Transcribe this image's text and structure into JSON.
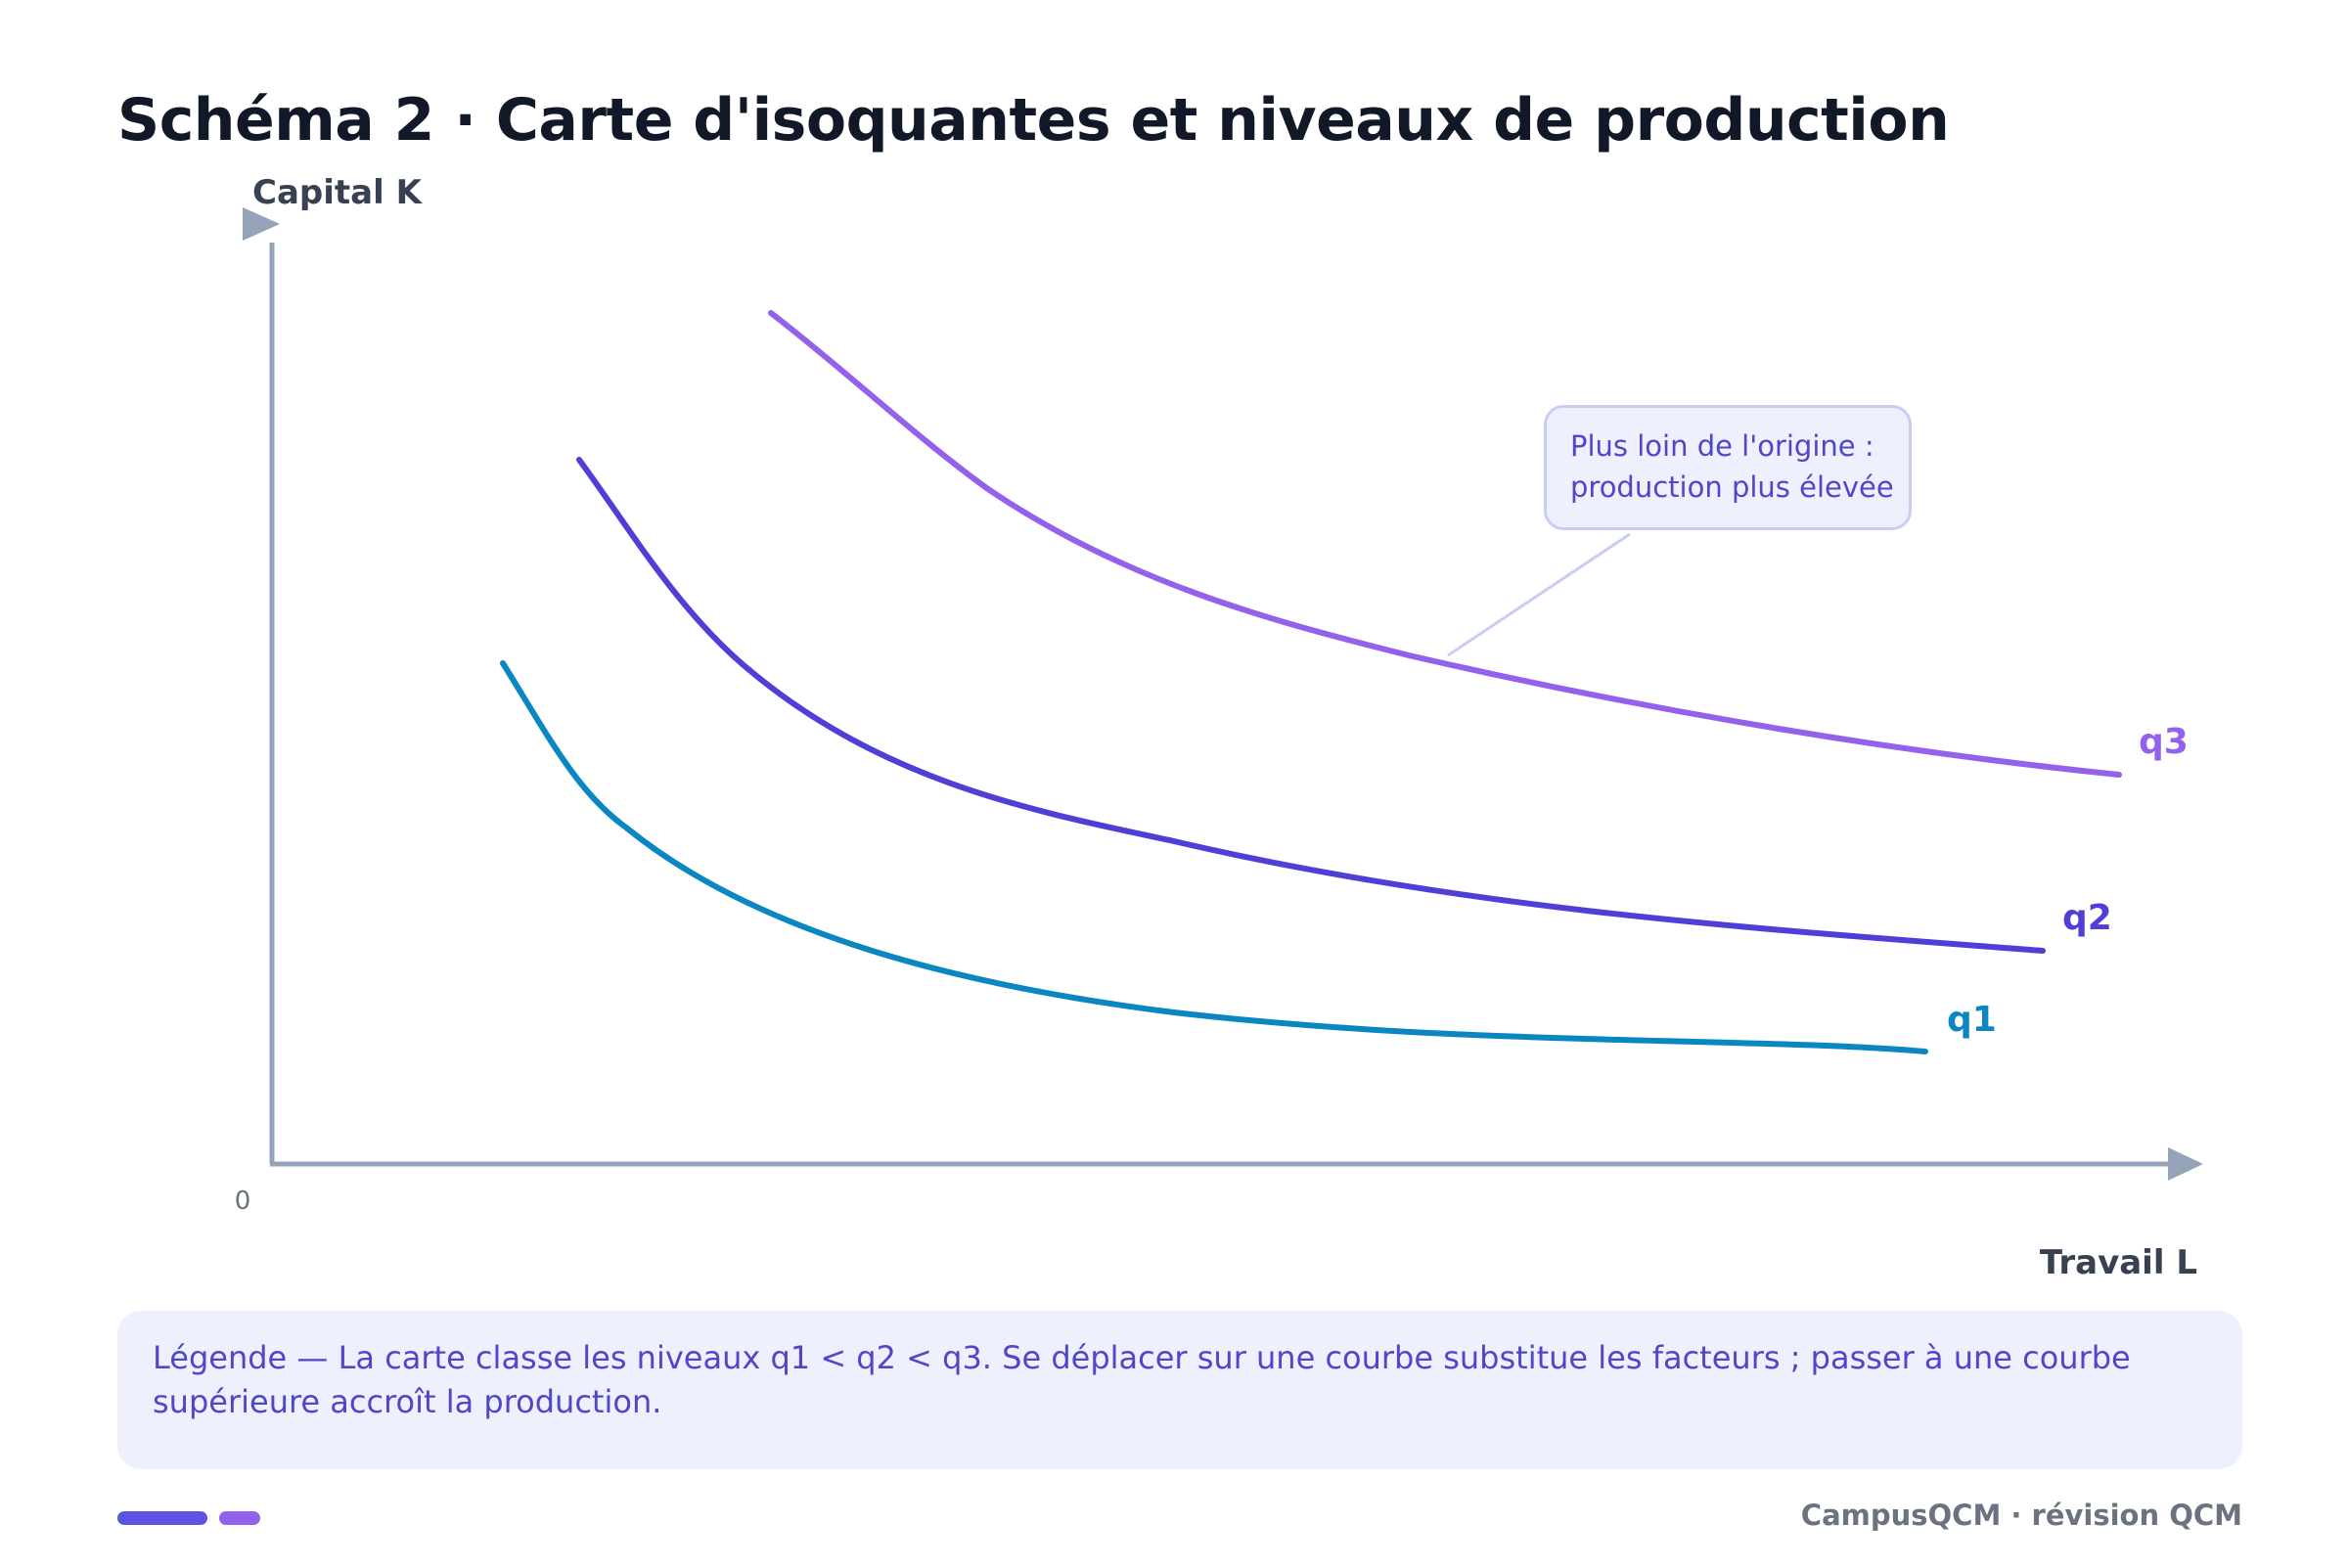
{
  "title": "Schéma 2 · Carte d'isoquantes et niveaux de production",
  "axes": {
    "y_label": "Capital K",
    "x_label": "Travail L",
    "origin": "0"
  },
  "curves": [
    {
      "name": "q1",
      "color": "#0a86c2"
    },
    {
      "name": "q2",
      "color": "#4f3fd6"
    },
    {
      "name": "q3",
      "color": "#9461ec"
    }
  ],
  "callout": {
    "line1": "Plus loin de l'origine :",
    "line2": "production plus élevée"
  },
  "legend": {
    "text": "Légende — La carte classe les niveaux q1 < q2 < q3. Se déplacer sur une courbe substitue les facteurs ; passer à une courbe supérieure accroît la production."
  },
  "footer": {
    "brand": "CampusQCM · révision QCM",
    "accent_colors": [
      "#5b54e0",
      "#9461ec"
    ]
  },
  "colors": {
    "axis": "#94a3b8",
    "callout_connector": "#c7cdf5"
  }
}
